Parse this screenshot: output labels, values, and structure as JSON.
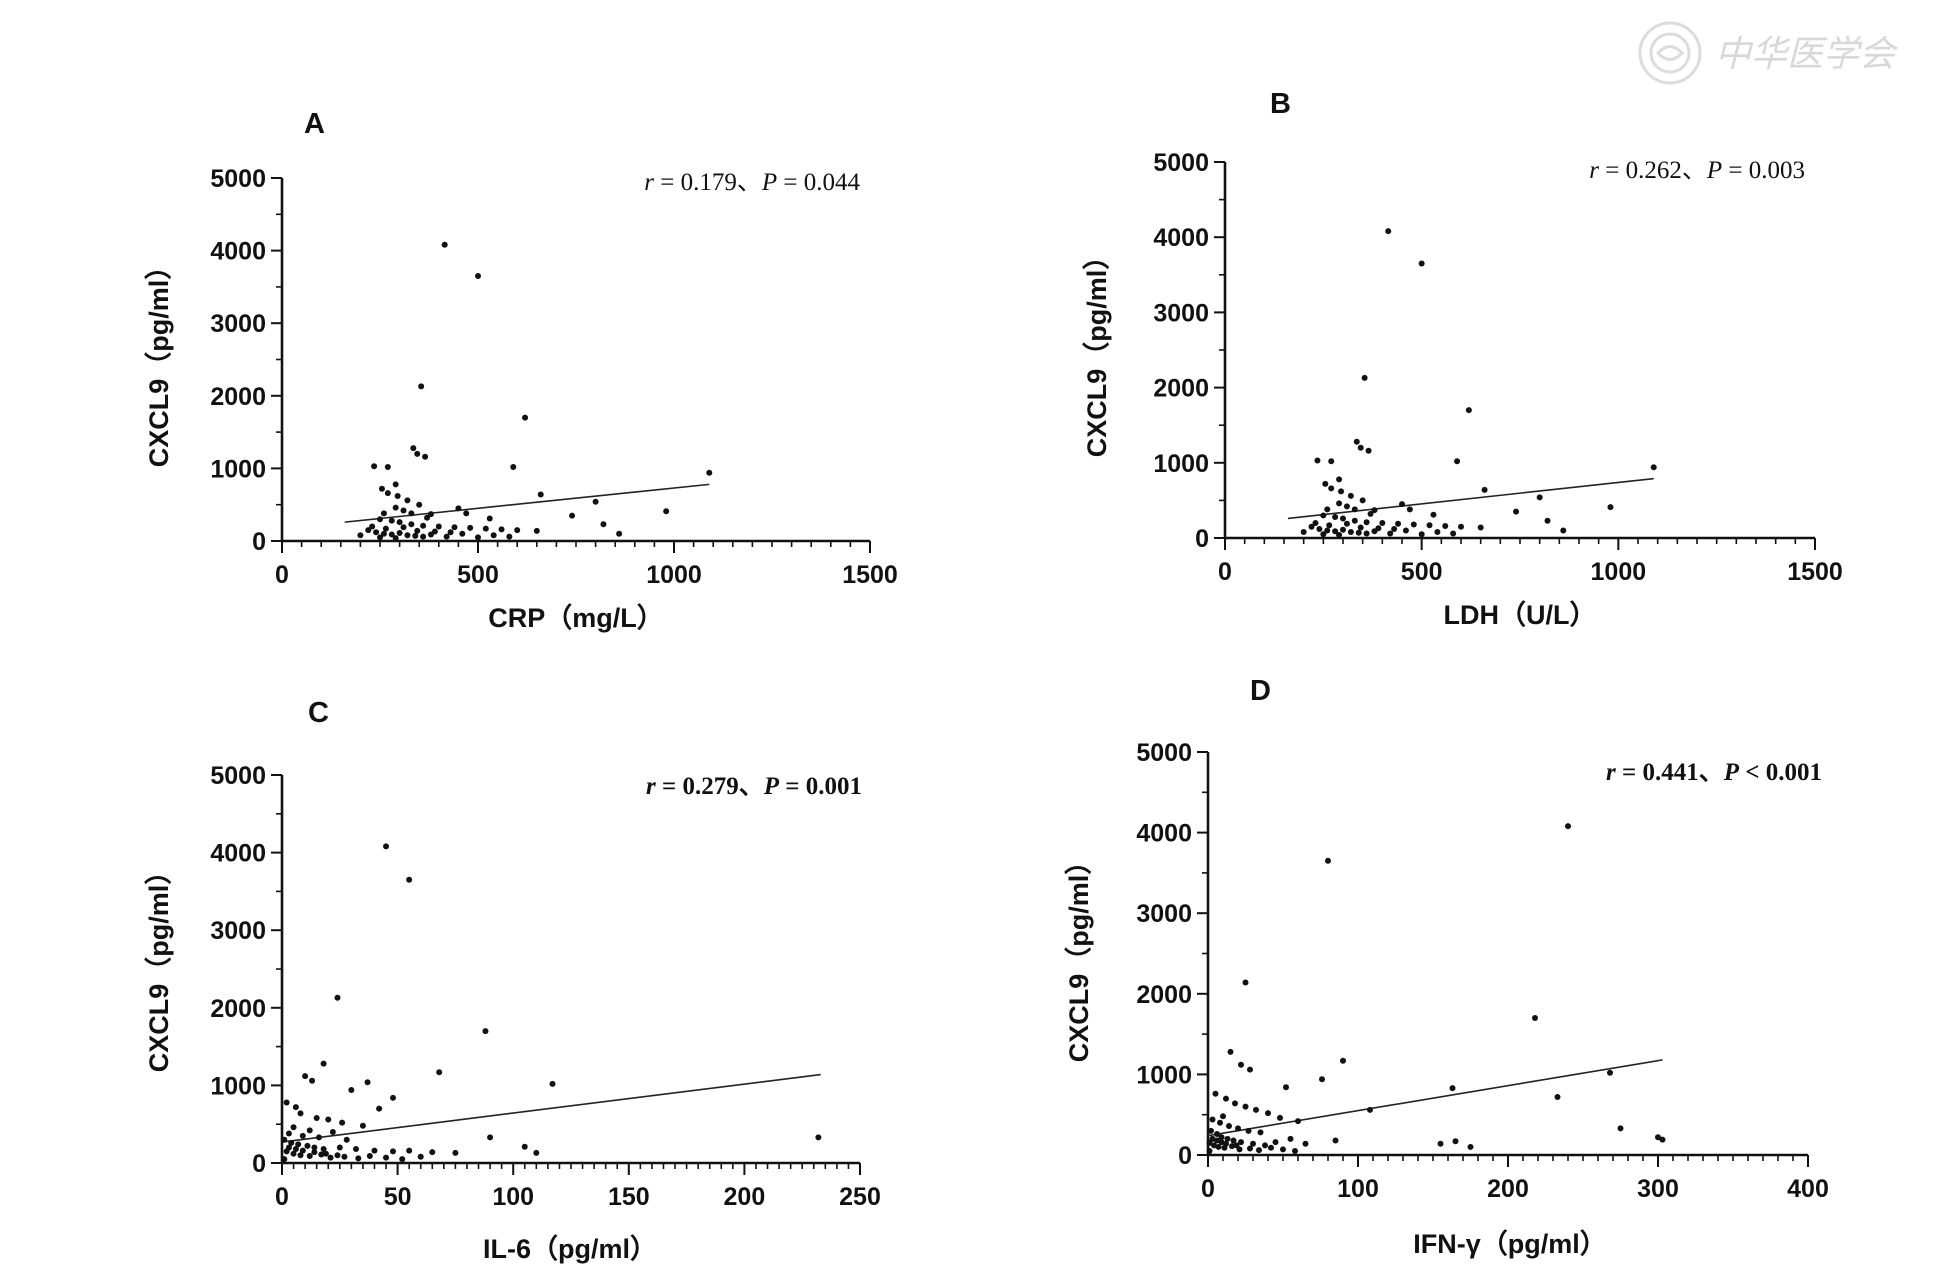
{
  "watermark": {
    "text": "中华医学会",
    "icon": "medical-association-seal-icon"
  },
  "chart_data": [
    {
      "type": "scatter",
      "panel": "A",
      "xlabel": "CRP（mg/L）",
      "ylabel": "CXCL9（pg/ml）",
      "xlim": [
        0,
        1500
      ],
      "ylim": [
        0,
        5000
      ],
      "xticks": [
        0,
        500,
        1000,
        1500
      ],
      "yticks": [
        0,
        1000,
        2000,
        3000,
        4000,
        5000
      ],
      "annotation": {
        "r_label": "r",
        "r_value": "0.179",
        "sep": "、",
        "p_label": "P",
        "p_op": "=",
        "p_value": "0.044",
        "bold": false
      },
      "trendline": [
        [
          160,
          260
        ],
        [
          1090,
          780
        ]
      ],
      "points": [
        [
          415,
          4080
        ],
        [
          500,
          3650
        ],
        [
          355,
          2130
        ],
        [
          620,
          1700
        ],
        [
          335,
          1280
        ],
        [
          345,
          1200
        ],
        [
          365,
          1160
        ],
        [
          235,
          1030
        ],
        [
          270,
          1020
        ],
        [
          590,
          1020
        ],
        [
          290,
          780
        ],
        [
          255,
          720
        ],
        [
          270,
          660
        ],
        [
          295,
          620
        ],
        [
          660,
          640
        ],
        [
          320,
          560
        ],
        [
          350,
          500
        ],
        [
          800,
          540
        ],
        [
          980,
          410
        ],
        [
          290,
          460
        ],
        [
          310,
          420
        ],
        [
          260,
          380
        ],
        [
          330,
          380
        ],
        [
          380,
          370
        ],
        [
          450,
          450
        ],
        [
          470,
          380
        ],
        [
          740,
          350
        ],
        [
          370,
          320
        ],
        [
          530,
          310
        ],
        [
          250,
          300
        ],
        [
          280,
          280
        ],
        [
          300,
          260
        ],
        [
          330,
          230
        ],
        [
          360,
          210
        ],
        [
          400,
          200
        ],
        [
          440,
          190
        ],
        [
          480,
          180
        ],
        [
          520,
          170
        ],
        [
          560,
          160
        ],
        [
          600,
          150
        ],
        [
          650,
          140
        ],
        [
          820,
          230
        ],
        [
          860,
          100
        ],
        [
          220,
          150
        ],
        [
          240,
          120
        ],
        [
          260,
          100
        ],
        [
          280,
          90
        ],
        [
          300,
          110
        ],
        [
          320,
          80
        ],
        [
          340,
          70
        ],
        [
          360,
          60
        ],
        [
          380,
          90
        ],
        [
          420,
          60
        ],
        [
          460,
          100
        ],
        [
          500,
          50
        ],
        [
          540,
          80
        ],
        [
          580,
          60
        ],
        [
          200,
          80
        ],
        [
          230,
          200
        ],
        [
          265,
          170
        ],
        [
          310,
          190
        ],
        [
          345,
          140
        ],
        [
          390,
          130
        ],
        [
          430,
          120
        ],
        [
          290,
          40
        ],
        [
          250,
          50
        ],
        [
          1090,
          940
        ]
      ]
    },
    {
      "type": "scatter",
      "panel": "B",
      "xlabel": "LDH（U/L）",
      "ylabel": "CXCL9（pg/ml）",
      "xlim": [
        0,
        1500
      ],
      "ylim": [
        0,
        5000
      ],
      "xticks": [
        0,
        500,
        1000,
        1500
      ],
      "yticks": [
        0,
        1000,
        2000,
        3000,
        4000,
        5000
      ],
      "annotation": {
        "r_label": "r",
        "r_value": "0.262",
        "sep": "、",
        "p_label": "P",
        "p_op": "=",
        "p_value": "0.003",
        "bold": false
      },
      "trendline": [
        [
          160,
          260
        ],
        [
          1090,
          790
        ]
      ],
      "points": [
        [
          415,
          4080
        ],
        [
          500,
          3650
        ],
        [
          355,
          2130
        ],
        [
          620,
          1700
        ],
        [
          335,
          1280
        ],
        [
          345,
          1200
        ],
        [
          365,
          1160
        ],
        [
          235,
          1030
        ],
        [
          270,
          1020
        ],
        [
          590,
          1020
        ],
        [
          290,
          780
        ],
        [
          255,
          720
        ],
        [
          270,
          660
        ],
        [
          295,
          620
        ],
        [
          660,
          640
        ],
        [
          320,
          560
        ],
        [
          350,
          500
        ],
        [
          800,
          540
        ],
        [
          980,
          410
        ],
        [
          290,
          460
        ],
        [
          310,
          420
        ],
        [
          260,
          380
        ],
        [
          330,
          380
        ],
        [
          380,
          370
        ],
        [
          450,
          450
        ],
        [
          470,
          380
        ],
        [
          740,
          350
        ],
        [
          370,
          320
        ],
        [
          530,
          310
        ],
        [
          250,
          300
        ],
        [
          280,
          280
        ],
        [
          300,
          260
        ],
        [
          330,
          230
        ],
        [
          360,
          210
        ],
        [
          400,
          200
        ],
        [
          440,
          190
        ],
        [
          480,
          180
        ],
        [
          520,
          170
        ],
        [
          560,
          160
        ],
        [
          600,
          150
        ],
        [
          650,
          140
        ],
        [
          820,
          230
        ],
        [
          860,
          100
        ],
        [
          220,
          150
        ],
        [
          240,
          120
        ],
        [
          260,
          100
        ],
        [
          280,
          90
        ],
        [
          300,
          110
        ],
        [
          320,
          80
        ],
        [
          340,
          70
        ],
        [
          360,
          60
        ],
        [
          380,
          90
        ],
        [
          420,
          60
        ],
        [
          460,
          100
        ],
        [
          500,
          50
        ],
        [
          540,
          80
        ],
        [
          580,
          60
        ],
        [
          200,
          80
        ],
        [
          230,
          200
        ],
        [
          265,
          170
        ],
        [
          310,
          190
        ],
        [
          345,
          140
        ],
        [
          390,
          130
        ],
        [
          430,
          120
        ],
        [
          290,
          40
        ],
        [
          250,
          50
        ],
        [
          1090,
          940
        ]
      ]
    },
    {
      "type": "scatter",
      "panel": "C",
      "xlabel": "IL-6（pg/ml）",
      "ylabel": "CXCL9（pg/ml）",
      "xlim": [
        0,
        250
      ],
      "ylim": [
        0,
        5000
      ],
      "xticks": [
        0,
        50,
        100,
        150,
        200,
        250
      ],
      "yticks": [
        0,
        1000,
        2000,
        3000,
        4000,
        5000
      ],
      "annotation": {
        "r_label": "r",
        "r_value": "0.279",
        "sep": "、",
        "p_label": "P",
        "p_op": "=",
        "p_value": "0.001",
        "bold": true
      },
      "trendline": [
        [
          0,
          270
        ],
        [
          233,
          1140
        ]
      ],
      "points": [
        [
          45,
          4080
        ],
        [
          55,
          3650
        ],
        [
          24,
          2130
        ],
        [
          88,
          1700
        ],
        [
          18,
          1280
        ],
        [
          10,
          1120
        ],
        [
          13,
          1060
        ],
        [
          37,
          1040
        ],
        [
          68,
          1170
        ],
        [
          117,
          1020
        ],
        [
          48,
          840
        ],
        [
          2,
          780
        ],
        [
          6,
          720
        ],
        [
          30,
          940
        ],
        [
          42,
          700
        ],
        [
          8,
          640
        ],
        [
          15,
          580
        ],
        [
          20,
          560
        ],
        [
          26,
          520
        ],
        [
          35,
          480
        ],
        [
          5,
          460
        ],
        [
          12,
          420
        ],
        [
          22,
          400
        ],
        [
          3,
          380
        ],
        [
          9,
          350
        ],
        [
          16,
          330
        ],
        [
          28,
          300
        ],
        [
          1,
          300
        ],
        [
          4,
          260
        ],
        [
          7,
          240
        ],
        [
          11,
          220
        ],
        [
          14,
          200
        ],
        [
          18,
          180
        ],
        [
          25,
          200
        ],
        [
          32,
          180
        ],
        [
          40,
          160
        ],
        [
          48,
          150
        ],
        [
          55,
          160
        ],
        [
          65,
          140
        ],
        [
          75,
          130
        ],
        [
          90,
          330
        ],
        [
          105,
          210
        ],
        [
          110,
          130
        ],
        [
          2,
          150
        ],
        [
          5,
          120
        ],
        [
          8,
          100
        ],
        [
          12,
          90
        ],
        [
          17,
          110
        ],
        [
          21,
          70
        ],
        [
          27,
          80
        ],
        [
          33,
          60
        ],
        [
          38,
          90
        ],
        [
          45,
          70
        ],
        [
          52,
          50
        ],
        [
          60,
          80
        ],
        [
          1,
          50
        ],
        [
          3,
          200
        ],
        [
          6,
          180
        ],
        [
          9,
          160
        ],
        [
          14,
          140
        ],
        [
          19,
          120
        ],
        [
          24,
          100
        ],
        [
          232,
          330
        ]
      ]
    },
    {
      "type": "scatter",
      "panel": "D",
      "xlabel": "IFN-γ（pg/ml）",
      "ylabel": "CXCL9（pg/ml）",
      "xlim": [
        0,
        400
      ],
      "ylim": [
        0,
        5000
      ],
      "xticks": [
        0,
        100,
        200,
        300,
        400
      ],
      "yticks": [
        0,
        1000,
        2000,
        3000,
        4000,
        5000
      ],
      "annotation": {
        "r_label": "r",
        "r_value": "0.441",
        "sep": "、",
        "p_label": "P",
        "p_op": "<",
        "p_value": "0.001",
        "bold": true
      },
      "trendline": [
        [
          0,
          240
        ],
        [
          303,
          1180
        ]
      ],
      "points": [
        [
          240,
          4080
        ],
        [
          80,
          3650
        ],
        [
          25,
          2140
        ],
        [
          218,
          1700
        ],
        [
          15,
          1280
        ],
        [
          22,
          1120
        ],
        [
          28,
          1060
        ],
        [
          90,
          1170
        ],
        [
          268,
          1020
        ],
        [
          52,
          840
        ],
        [
          76,
          940
        ],
        [
          233,
          720
        ],
        [
          163,
          830
        ],
        [
          108,
          560
        ],
        [
          5,
          760
        ],
        [
          12,
          700
        ],
        [
          18,
          640
        ],
        [
          25,
          600
        ],
        [
          32,
          560
        ],
        [
          40,
          520
        ],
        [
          48,
          460
        ],
        [
          60,
          420
        ],
        [
          10,
          480
        ],
        [
          3,
          440
        ],
        [
          8,
          400
        ],
        [
          14,
          360
        ],
        [
          20,
          330
        ],
        [
          27,
          300
        ],
        [
          35,
          280
        ],
        [
          2,
          300
        ],
        [
          6,
          260
        ],
        [
          9,
          220
        ],
        [
          13,
          200
        ],
        [
          17,
          180
        ],
        [
          22,
          160
        ],
        [
          30,
          140
        ],
        [
          38,
          120
        ],
        [
          45,
          160
        ],
        [
          55,
          200
        ],
        [
          65,
          140
        ],
        [
          85,
          180
        ],
        [
          155,
          140
        ],
        [
          165,
          170
        ],
        [
          175,
          100
        ],
        [
          275,
          330
        ],
        [
          300,
          220
        ],
        [
          303,
          190
        ],
        [
          1,
          150
        ],
        [
          4,
          120
        ],
        [
          7,
          100
        ],
        [
          11,
          90
        ],
        [
          16,
          110
        ],
        [
          21,
          70
        ],
        [
          28,
          80
        ],
        [
          34,
          60
        ],
        [
          42,
          90
        ],
        [
          50,
          70
        ],
        [
          58,
          50
        ],
        [
          1,
          50
        ],
        [
          3,
          200
        ],
        [
          6,
          180
        ],
        [
          9,
          160
        ],
        [
          12,
          140
        ],
        [
          19,
          120
        ]
      ]
    }
  ]
}
